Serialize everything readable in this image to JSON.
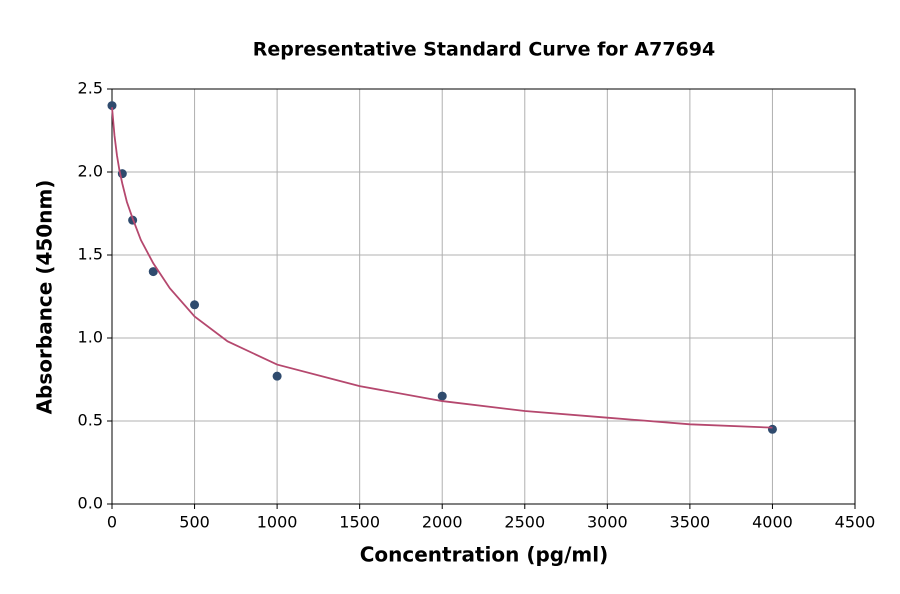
{
  "chart_data": {
    "type": "scatter",
    "title": "Representative Standard Curve for A77694",
    "x_label": "Concentration (pg/ml)",
    "y_label": "Absorbance (450nm)",
    "xlim": [
      0,
      4500
    ],
    "ylim": [
      0,
      2.5
    ],
    "xticks": [
      0,
      500,
      1000,
      1500,
      2000,
      2500,
      3000,
      3500,
      4000,
      4500
    ],
    "yticks": [
      {
        "value": 0,
        "label": "0.0"
      },
      {
        "value": 0.5,
        "label": "0.5"
      },
      {
        "value": 1,
        "label": "1.0"
      },
      {
        "value": 1.5,
        "label": "1.5"
      },
      {
        "value": 2,
        "label": "2.0"
      },
      {
        "value": 2.5,
        "label": "2.5"
      }
    ],
    "grid": true,
    "series": [
      {
        "kind": "points",
        "color": "#2f4b6e",
        "x": [
          0,
          62.5,
          125,
          250,
          500,
          1000,
          2000,
          4000
        ],
        "values": [
          2.4,
          1.99,
          1.71,
          1.4,
          1.2,
          0.77,
          0.65,
          0.45
        ]
      },
      {
        "kind": "line",
        "color": "#b5486e",
        "x": [
          0,
          15,
          30,
          45,
          62.5,
          90,
          125,
          175,
          250,
          350,
          500,
          700,
          1000,
          1500,
          2000,
          2500,
          3000,
          3500,
          4000
        ],
        "values": [
          2.39,
          2.22,
          2.1,
          2.01,
          1.93,
          1.82,
          1.72,
          1.59,
          1.45,
          1.3,
          1.13,
          0.98,
          0.84,
          0.71,
          0.62,
          0.56,
          0.52,
          0.48,
          0.46
        ]
      }
    ]
  }
}
